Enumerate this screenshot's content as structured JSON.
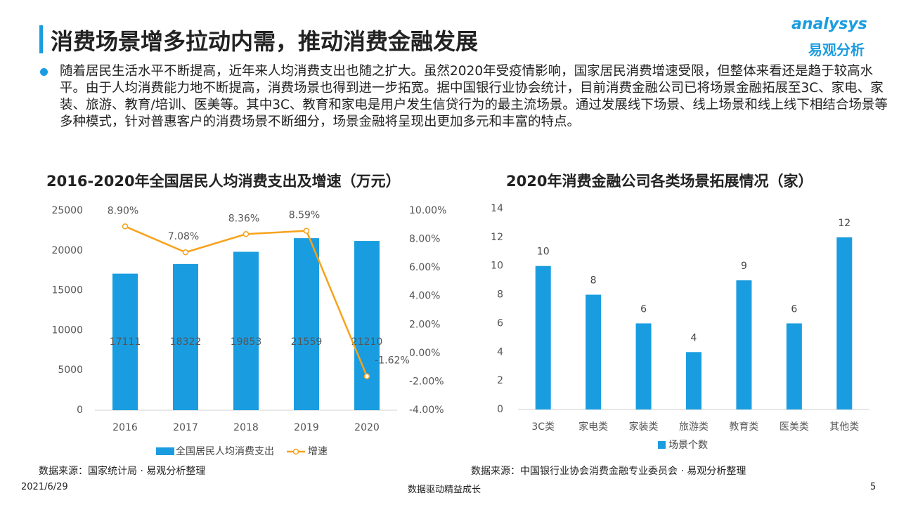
{
  "header": {
    "title": "消费场景增多拉动内需，推动消费金融发展",
    "logo_en": "analysys",
    "logo_cn": "易观分析"
  },
  "paragraph": "随着居民生活水平不断提高，近年来人均消费支出也随之扩大。虽然2020年受疫情影响，国家居民消费增速受限，但整体来看还是趋于较高水平。由于人均消费能力地不断提高，消费场景也得到进一步拓宽。据中国银行业协会统计，目前消费金融公司已将场景金融拓展至3C、家电、家装、旅游、教育/培训、医美等。其中3C、教育和家电是用户发生信贷行为的最主流场景。通过发展线下场景、线上场景和线上线下相结合场景等多种模式，针对普惠客户的消费场景不断细分，场景金融将呈现出更加多元和丰富的特点。",
  "chart_data": [
    {
      "type": "bar",
      "title": "2016-2020年全国居民人均消费支出及增速（万元）",
      "categories": [
        "2016",
        "2017",
        "2018",
        "2019",
        "2020"
      ],
      "series": [
        {
          "name": "全国居民人均消费支出",
          "color": "#1a9de0",
          "values": [
            17111,
            18322,
            19853,
            21559,
            21210
          ]
        },
        {
          "name": "增速",
          "type": "line",
          "axis": "y2",
          "color": "#f7a21b",
          "values": [
            8.9,
            7.08,
            8.36,
            8.59,
            -1.62
          ],
          "value_labels": [
            "8.90%",
            "7.08%",
            "8.36%",
            "8.59%",
            "-1.62%"
          ]
        }
      ],
      "ylim": [
        0,
        25000
      ],
      "yticks": [
        0,
        5000,
        10000,
        15000,
        20000,
        25000
      ],
      "y2lim": [
        -4,
        10
      ],
      "y2ticks": [
        {
          "value": -4,
          "label": "-4.00%"
        },
        {
          "value": -2,
          "label": "-2.00%"
        },
        {
          "value": 0,
          "label": "0.00%"
        },
        {
          "value": 2,
          "label": "2.00%"
        },
        {
          "value": 4,
          "label": "4.00%"
        },
        {
          "value": 6,
          "label": "6.00%"
        },
        {
          "value": 8,
          "label": "8.00%"
        },
        {
          "value": 10,
          "label": "10.00%"
        }
      ],
      "grid": false,
      "legend": "bottom"
    },
    {
      "type": "bar",
      "title": "2020年消费金融公司各类场景拓展情况（家）",
      "categories": [
        "3C类",
        "家电类",
        "家装类",
        "旅游类",
        "教育类",
        "医美类",
        "其他类"
      ],
      "series": [
        {
          "name": "场景个数",
          "color": "#1a9de0",
          "values": [
            10,
            8,
            6,
            4,
            9,
            6,
            12
          ]
        }
      ],
      "ylim": [
        0,
        14
      ],
      "yticks": [
        0,
        2,
        4,
        6,
        8,
        10,
        12,
        14
      ],
      "grid": false,
      "legend": "bottom"
    }
  ],
  "sources": [
    "数据来源：国家统计局 · 易观分析整理",
    "数据来源：中国银行业协会消费金融专业委员会 · 易观分析整理"
  ],
  "footer": {
    "date": "2021/6/29",
    "slogan": "数据驱动精益成长",
    "page": "5"
  }
}
